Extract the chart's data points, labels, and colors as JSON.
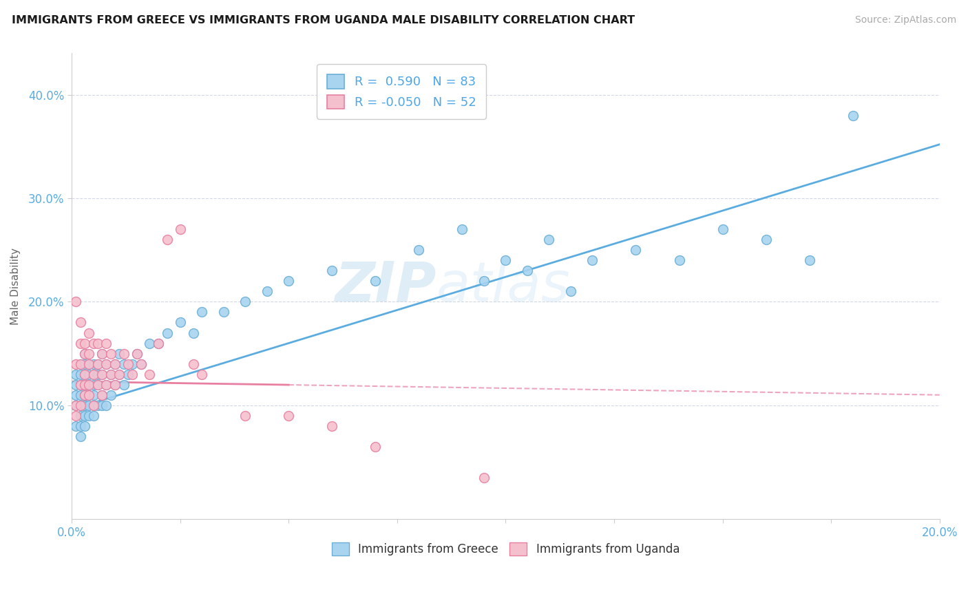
{
  "title": "IMMIGRANTS FROM GREECE VS IMMIGRANTS FROM UGANDA MALE DISABILITY CORRELATION CHART",
  "source": "Source: ZipAtlas.com",
  "ylabel": "Male Disability",
  "xlim": [
    0.0,
    0.2
  ],
  "ylim": [
    -0.01,
    0.44
  ],
  "yticks": [
    0.1,
    0.2,
    0.3,
    0.4
  ],
  "ytick_labels": [
    "10.0%",
    "20.0%",
    "30.0%",
    "40.0%"
  ],
  "xticks": [
    0.0,
    0.025,
    0.05,
    0.075,
    0.1,
    0.125,
    0.15,
    0.175,
    0.2
  ],
  "blue_color": "#a8d4f0",
  "blue_edge": "#6aaed6",
  "pink_color": "#f5c0ce",
  "pink_edge": "#e87fa0",
  "blue_line_color": "#5aace0",
  "pink_line_color": "#e87fa0",
  "tick_color": "#5aace0",
  "R_blue": 0.59,
  "N_blue": 83,
  "R_pink": -0.05,
  "N_pink": 52,
  "legend_label_blue": "Immigrants from Greece",
  "legend_label_pink": "Immigrants from Uganda",
  "watermark_zip": "ZIP",
  "watermark_atlas": "atlas",
  "blue_scatter_x": [
    0.001,
    0.001,
    0.001,
    0.001,
    0.001,
    0.002,
    0.002,
    0.002,
    0.002,
    0.002,
    0.002,
    0.002,
    0.002,
    0.003,
    0.003,
    0.003,
    0.003,
    0.003,
    0.003,
    0.003,
    0.003,
    0.003,
    0.004,
    0.004,
    0.004,
    0.004,
    0.004,
    0.004,
    0.005,
    0.005,
    0.005,
    0.005,
    0.005,
    0.005,
    0.006,
    0.006,
    0.006,
    0.006,
    0.007,
    0.007,
    0.007,
    0.007,
    0.008,
    0.008,
    0.008,
    0.009,
    0.009,
    0.01,
    0.01,
    0.011,
    0.011,
    0.012,
    0.012,
    0.013,
    0.014,
    0.015,
    0.016,
    0.018,
    0.02,
    0.022,
    0.025,
    0.028,
    0.03,
    0.035,
    0.04,
    0.045,
    0.05,
    0.06,
    0.07,
    0.08,
    0.09,
    0.1,
    0.11,
    0.12,
    0.13,
    0.14,
    0.15,
    0.16,
    0.17,
    0.18,
    0.095,
    0.105,
    0.115
  ],
  "blue_scatter_y": [
    0.11,
    0.12,
    0.1,
    0.08,
    0.13,
    0.1,
    0.12,
    0.09,
    0.11,
    0.14,
    0.08,
    0.13,
    0.07,
    0.11,
    0.13,
    0.1,
    0.12,
    0.09,
    0.14,
    0.08,
    0.15,
    0.1,
    0.12,
    0.11,
    0.13,
    0.09,
    0.14,
    0.1,
    0.11,
    0.13,
    0.1,
    0.12,
    0.14,
    0.09,
    0.12,
    0.14,
    0.1,
    0.13,
    0.11,
    0.13,
    0.1,
    0.15,
    0.12,
    0.14,
    0.1,
    0.13,
    0.11,
    0.14,
    0.12,
    0.15,
    0.13,
    0.14,
    0.12,
    0.13,
    0.14,
    0.15,
    0.14,
    0.16,
    0.16,
    0.17,
    0.18,
    0.17,
    0.19,
    0.19,
    0.2,
    0.21,
    0.22,
    0.23,
    0.22,
    0.25,
    0.27,
    0.24,
    0.26,
    0.24,
    0.25,
    0.24,
    0.27,
    0.26,
    0.24,
    0.38,
    0.22,
    0.23,
    0.21
  ],
  "pink_scatter_x": [
    0.001,
    0.001,
    0.001,
    0.001,
    0.002,
    0.002,
    0.002,
    0.002,
    0.002,
    0.003,
    0.003,
    0.003,
    0.003,
    0.003,
    0.004,
    0.004,
    0.004,
    0.004,
    0.004,
    0.005,
    0.005,
    0.005,
    0.006,
    0.006,
    0.006,
    0.007,
    0.007,
    0.007,
    0.008,
    0.008,
    0.008,
    0.009,
    0.009,
    0.01,
    0.01,
    0.011,
    0.012,
    0.013,
    0.014,
    0.015,
    0.016,
    0.018,
    0.02,
    0.022,
    0.025,
    0.028,
    0.03,
    0.04,
    0.05,
    0.06,
    0.07,
    0.095
  ],
  "pink_scatter_y": [
    0.2,
    0.1,
    0.14,
    0.09,
    0.16,
    0.12,
    0.14,
    0.18,
    0.1,
    0.13,
    0.16,
    0.11,
    0.15,
    0.12,
    0.14,
    0.17,
    0.11,
    0.15,
    0.12,
    0.13,
    0.16,
    0.1,
    0.14,
    0.12,
    0.16,
    0.13,
    0.15,
    0.11,
    0.14,
    0.16,
    0.12,
    0.13,
    0.15,
    0.14,
    0.12,
    0.13,
    0.15,
    0.14,
    0.13,
    0.15,
    0.14,
    0.13,
    0.16,
    0.26,
    0.27,
    0.14,
    0.13,
    0.09,
    0.09,
    0.08,
    0.06,
    0.03
  ],
  "blue_line_x0": 0.0,
  "blue_line_y0": 0.096,
  "blue_line_x1": 0.2,
  "blue_line_y1": 0.352,
  "pink_line_x0": 0.0,
  "pink_line_y0": 0.123,
  "pink_line_x1": 0.2,
  "pink_line_y1": 0.11
}
